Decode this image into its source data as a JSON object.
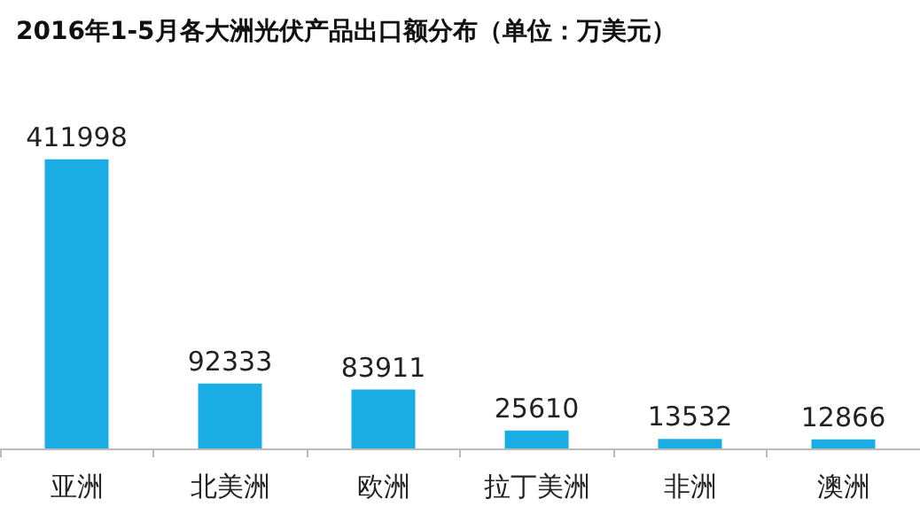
{
  "chart_data": {
    "type": "bar",
    "title": "2016年1-5月各大洲光伏产品出口额分布（单位：万美元）",
    "categories": [
      "亚洲",
      "北美洲",
      "欧洲",
      "拉丁美洲",
      "非洲",
      "澳洲"
    ],
    "values": [
      411998,
      92333,
      83911,
      25610,
      13532,
      12866
    ],
    "color": "#1aade4",
    "data_labels": true
  }
}
